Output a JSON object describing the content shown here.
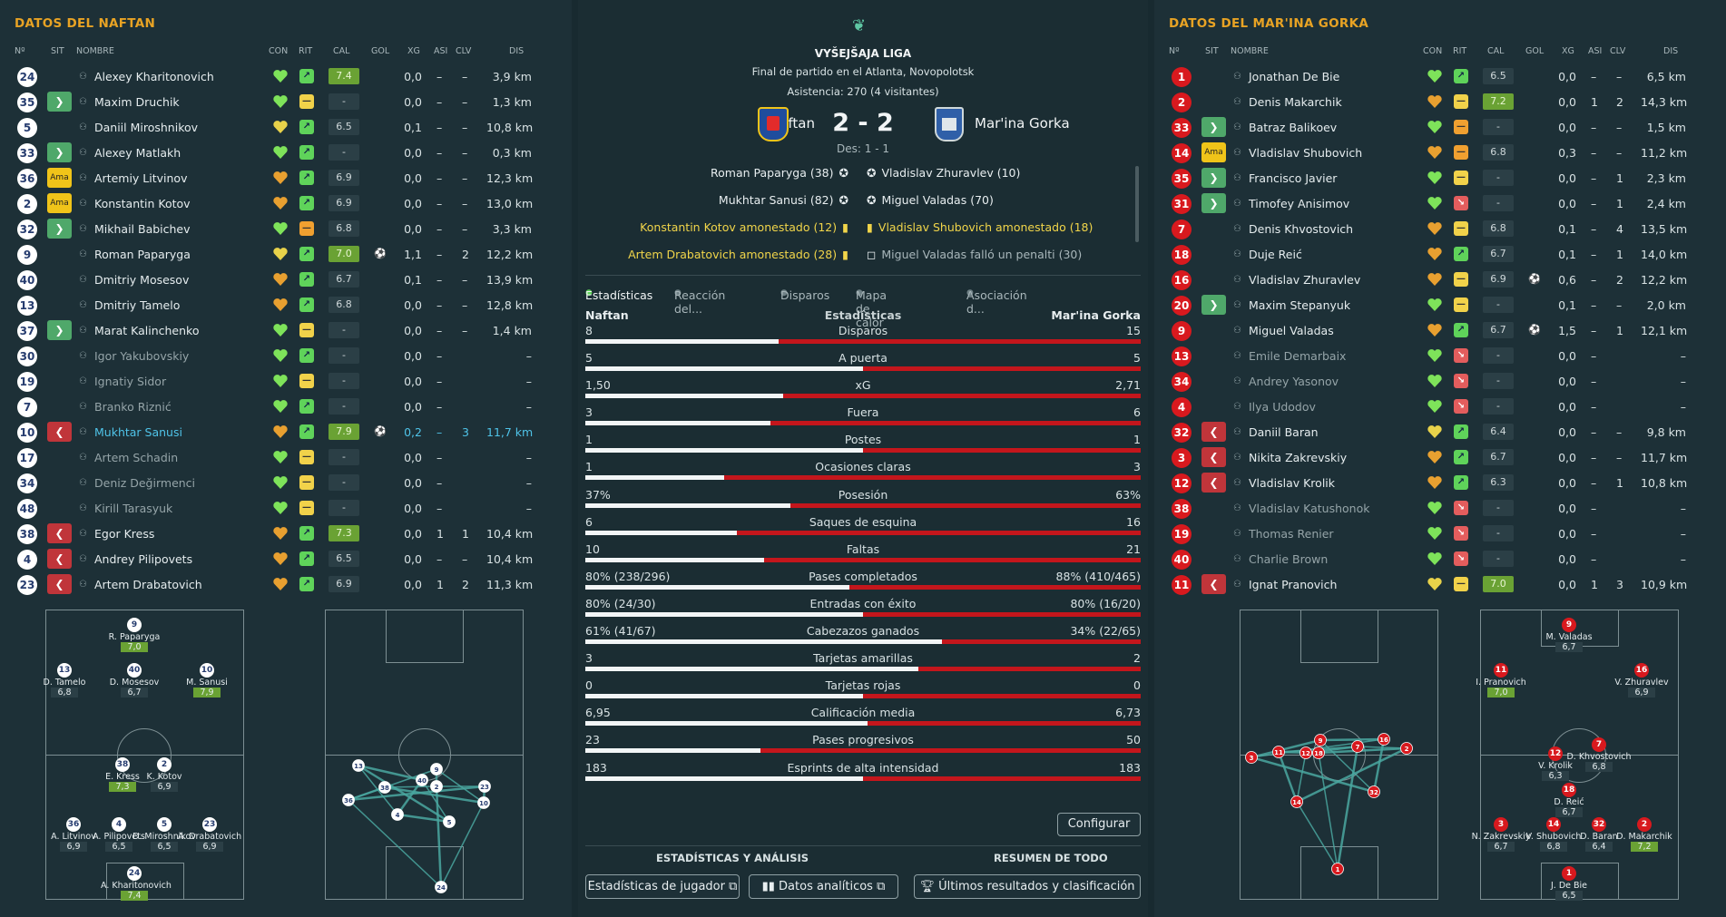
{
  "left": {
    "title": "DATOS DEL NAFTAN",
    "headers": {
      "num": "Nº",
      "sit": "SIT",
      "nombre": "NOMBRE",
      "con": "CON",
      "rit": "RIT",
      "cal": "CAL",
      "gol": "GOL",
      "xg": "XG",
      "asi": "ASI",
      "clv": "CLV",
      "dis": "DIS"
    },
    "players": [
      {
        "num": "24",
        "sit": "",
        "name": "Alexey Kharitonovich",
        "con": "#7ee35a",
        "rit": "up",
        "cal": "7.4",
        "calg": true,
        "gol": "",
        "xg": "0,0",
        "asi": "–",
        "clv": "–",
        "dis": "3,9 km"
      },
      {
        "num": "35",
        "sit": "in",
        "name": "Maxim Druchik",
        "con": "#7ee35a",
        "rit": "eq",
        "cal": "-",
        "calg": false,
        "gol": "",
        "xg": "0,0",
        "asi": "–",
        "clv": "–",
        "dis": "1,3 km"
      },
      {
        "num": "5",
        "sit": "",
        "name": "Daniil Miroshnikov",
        "con": "#e8d24a",
        "rit": "up",
        "cal": "6.5",
        "calg": false,
        "gol": "",
        "xg": "0,1",
        "asi": "–",
        "clv": "–",
        "dis": "10,8 km"
      },
      {
        "num": "33",
        "sit": "in",
        "name": "Alexey Matlakh",
        "con": "#7ee35a",
        "rit": "up",
        "cal": "-",
        "calg": false,
        "gol": "",
        "xg": "0,0",
        "asi": "–",
        "clv": "–",
        "dis": "0,3 km"
      },
      {
        "num": "36",
        "sit": "amber",
        "name": "Artemiy Litvinov",
        "con": "#e8a030",
        "rit": "up",
        "cal": "6.9",
        "calg": false,
        "gol": "",
        "xg": "0,0",
        "asi": "–",
        "clv": "–",
        "dis": "12,3 km"
      },
      {
        "num": "2",
        "sit": "amber",
        "name": "Konstantin Kotov",
        "con": "#e8a030",
        "rit": "up",
        "cal": "6.9",
        "calg": false,
        "gol": "",
        "xg": "0,0",
        "asi": "–",
        "clv": "–",
        "dis": "13,0 km"
      },
      {
        "num": "32",
        "sit": "in",
        "name": "Mikhail Babichev",
        "con": "#7ee35a",
        "rit": "or",
        "cal": "6.8",
        "calg": false,
        "gol": "",
        "xg": "0,0",
        "asi": "–",
        "clv": "–",
        "dis": "3,3 km"
      },
      {
        "num": "9",
        "sit": "",
        "name": "Roman Paparyga",
        "con": "#e8d24a",
        "rit": "up",
        "cal": "7.0",
        "calg": true,
        "gol": "⚽",
        "xg": "1,1",
        "asi": "–",
        "clv": "2",
        "dis": "12,2 km"
      },
      {
        "num": "40",
        "sit": "",
        "name": "Dmitriy Mosesov",
        "con": "#e8a030",
        "rit": "up",
        "cal": "6.7",
        "calg": false,
        "gol": "",
        "xg": "0,1",
        "asi": "–",
        "clv": "–",
        "dis": "13,9 km"
      },
      {
        "num": "13",
        "sit": "",
        "name": "Dmitriy Tamelo",
        "con": "#e8a030",
        "rit": "up",
        "cal": "6.8",
        "calg": false,
        "gol": "",
        "xg": "0,0",
        "asi": "–",
        "clv": "–",
        "dis": "12,8 km"
      },
      {
        "num": "37",
        "sit": "in",
        "name": "Marat Kalinchenko",
        "con": "#7ee35a",
        "rit": "eq",
        "cal": "-",
        "calg": false,
        "gol": "",
        "xg": "0,0",
        "asi": "–",
        "clv": "–",
        "dis": "1,4 km"
      },
      {
        "num": "30",
        "sit": "",
        "name": "Igor Yakubovskiy",
        "con": "#7ee35a",
        "rit": "up",
        "cal": "-",
        "calg": false,
        "gol": "",
        "xg": "0,0",
        "asi": "–",
        "clv": "",
        "dis": "–",
        "dim": true
      },
      {
        "num": "19",
        "sit": "",
        "name": "Ignatiy Sidor",
        "con": "#7ee35a",
        "rit": "eq",
        "cal": "-",
        "calg": false,
        "gol": "",
        "xg": "0,0",
        "asi": "–",
        "clv": "",
        "dis": "–",
        "dim": true
      },
      {
        "num": "7",
        "sit": "",
        "name": "Branko Riznić",
        "con": "#7ee35a",
        "rit": "up",
        "cal": "-",
        "calg": false,
        "gol": "",
        "xg": "0,0",
        "asi": "–",
        "clv": "",
        "dis": "–",
        "dim": true
      },
      {
        "num": "10",
        "sit": "out",
        "name": "Mukhtar Sanusi",
        "con": "#e8a030",
        "rit": "up",
        "cal": "7.9",
        "calg": true,
        "gol": "⚽",
        "xg": "0,2",
        "asi": "–",
        "clv": "3",
        "dis": "11,7 km",
        "hl": true
      },
      {
        "num": "17",
        "sit": "",
        "name": "Artem Schadin",
        "con": "#7ee35a",
        "rit": "eq",
        "cal": "-",
        "calg": false,
        "gol": "",
        "xg": "0,0",
        "asi": "–",
        "clv": "",
        "dis": "–",
        "dim": true
      },
      {
        "num": "34",
        "sit": "",
        "name": "Deniz Değirmenci",
        "con": "#7ee35a",
        "rit": "eq",
        "cal": "-",
        "calg": false,
        "gol": "",
        "xg": "0,0",
        "asi": "–",
        "clv": "",
        "dis": "–",
        "dim": true
      },
      {
        "num": "48",
        "sit": "",
        "name": "Kirill Tarasyuk",
        "con": "#7ee35a",
        "rit": "eq",
        "cal": "-",
        "calg": false,
        "gol": "",
        "xg": "0,0",
        "asi": "–",
        "clv": "",
        "dis": "–",
        "dim": true
      },
      {
        "num": "38",
        "sit": "out",
        "name": "Egor Kress",
        "con": "#e8a030",
        "rit": "up",
        "cal": "7.3",
        "calg": true,
        "gol": "",
        "xg": "0,0",
        "asi": "1",
        "clv": "1",
        "dis": "10,4 km"
      },
      {
        "num": "4",
        "sit": "out",
        "name": "Andrey Pilipovets",
        "con": "#e8a030",
        "rit": "up",
        "cal": "6.5",
        "calg": false,
        "gol": "",
        "xg": "0,0",
        "asi": "–",
        "clv": "–",
        "dis": "10,4 km"
      },
      {
        "num": "23",
        "sit": "out",
        "name": "Artem Drabatovich",
        "con": "#e8a030",
        "rit": "up",
        "cal": "6.9",
        "calg": false,
        "gol": "",
        "xg": "0,0",
        "asi": "1",
        "clv": "2",
        "dis": "11,3 km"
      }
    ],
    "formation": [
      {
        "n": "9",
        "name": "R. Paparyga",
        "r": "7,0",
        "g": true
      },
      {
        "n": "13",
        "name": "D. Tamelo",
        "r": "6,8",
        "g": false
      },
      {
        "n": "40",
        "name": "D. Mosesov",
        "r": "6,7",
        "g": false
      },
      {
        "n": "10",
        "name": "M. Sanusi",
        "r": "7,9",
        "g": true
      },
      {
        "n": "38",
        "name": "E. Kress",
        "r": "7,3",
        "g": true
      },
      {
        "n": "2",
        "name": "K. Kotov",
        "r": "6,9",
        "g": false
      },
      {
        "n": "36",
        "name": "A. Litvinov",
        "r": "6,9",
        "g": false
      },
      {
        "n": "4",
        "name": "A. Pilipovets",
        "r": "6,5",
        "g": false
      },
      {
        "n": "5",
        "name": "D. Miroshnikov",
        "r": "6,5",
        "g": false
      },
      {
        "n": "23",
        "name": "A. Drabatovich",
        "r": "6,9",
        "g": false
      },
      {
        "n": "24",
        "name": "A. Kharitonovich",
        "r": "7,4",
        "g": true
      }
    ],
    "passmap": [
      "13",
      "38",
      "36",
      "40",
      "9",
      "2",
      "4",
      "23",
      "10",
      "5",
      "24"
    ]
  },
  "right": {
    "title": "DATOS DEL MAR'INA GORKA",
    "headers": {
      "num": "Nº",
      "sit": "SIT",
      "nombre": "NOMBRE",
      "con": "CON",
      "rit": "RIT",
      "cal": "CAL",
      "gol": "GOL",
      "xg": "XG",
      "asi": "ASI",
      "clv": "CLV",
      "dis": "DIS"
    },
    "players": [
      {
        "num": "1",
        "sit": "",
        "name": "Jonathan De Bie",
        "con": "#7ee35a",
        "rit": "up",
        "cal": "6.5",
        "calg": false,
        "gol": "",
        "xg": "0,0",
        "asi": "–",
        "clv": "–",
        "dis": "6,5 km"
      },
      {
        "num": "2",
        "sit": "",
        "name": "Denis Makarchik",
        "con": "#e8a030",
        "rit": "eq",
        "cal": "7.2",
        "calg": true,
        "gol": "",
        "xg": "0,0",
        "asi": "1",
        "clv": "2",
        "dis": "14,3 km"
      },
      {
        "num": "33",
        "sit": "in",
        "name": "Batraz Balikoev",
        "con": "#7ee35a",
        "rit": "or",
        "cal": "-",
        "calg": false,
        "gol": "",
        "xg": "0,0",
        "asi": "–",
        "clv": "–",
        "dis": "1,5 km"
      },
      {
        "num": "14",
        "sit": "amber",
        "name": "Vladislav Shubovich",
        "con": "#e8a030",
        "rit": "or",
        "cal": "6.8",
        "calg": false,
        "gol": "",
        "xg": "0,3",
        "asi": "–",
        "clv": "–",
        "dis": "11,2 km"
      },
      {
        "num": "35",
        "sit": "in",
        "name": "Francisco Javier",
        "con": "#7ee35a",
        "rit": "eq",
        "cal": "-",
        "calg": false,
        "gol": "",
        "xg": "0,0",
        "asi": "–",
        "clv": "1",
        "dis": "2,3 km"
      },
      {
        "num": "31",
        "sit": "in",
        "name": "Timofey Anisimov",
        "con": "#7ee35a",
        "rit": "dn",
        "cal": "-",
        "calg": false,
        "gol": "",
        "xg": "0,0",
        "asi": "–",
        "clv": "1",
        "dis": "2,4 km"
      },
      {
        "num": "7",
        "sit": "",
        "name": "Denis Khvostovich",
        "con": "#e8a030",
        "rit": "eq",
        "cal": "6.8",
        "calg": false,
        "gol": "",
        "xg": "0,1",
        "asi": "–",
        "clv": "4",
        "dis": "13,5 km"
      },
      {
        "num": "18",
        "sit": "",
        "name": "Duje Reić",
        "con": "#e8a030",
        "rit": "up",
        "cal": "6.7",
        "calg": false,
        "gol": "",
        "xg": "0,1",
        "asi": "–",
        "clv": "1",
        "dis": "14,0 km"
      },
      {
        "num": "16",
        "sit": "",
        "name": "Vladislav Zhuravlev",
        "con": "#e8a030",
        "rit": "eq",
        "cal": "6.9",
        "calg": false,
        "gol": "⚽",
        "xg": "0,6",
        "asi": "–",
        "clv": "2",
        "dis": "12,2 km"
      },
      {
        "num": "20",
        "sit": "in",
        "name": "Maxim Stepanyuk",
        "con": "#7ee35a",
        "rit": "eq",
        "cal": "-",
        "calg": false,
        "gol": "",
        "xg": "0,1",
        "asi": "–",
        "clv": "–",
        "dis": "2,0 km"
      },
      {
        "num": "9",
        "sit": "",
        "name": "Miguel Valadas",
        "con": "#e8a030",
        "rit": "up",
        "cal": "6.7",
        "calg": false,
        "gol": "⚽",
        "xg": "1,5",
        "asi": "–",
        "clv": "1",
        "dis": "12,1 km"
      },
      {
        "num": "13",
        "sit": "",
        "name": "Emile Demarbaix",
        "con": "#7ee35a",
        "rit": "dn",
        "cal": "-",
        "calg": false,
        "gol": "",
        "xg": "0,0",
        "asi": "–",
        "clv": "",
        "dis": "–",
        "dim": true
      },
      {
        "num": "34",
        "sit": "",
        "name": "Andrey Yasonov",
        "con": "#7ee35a",
        "rit": "dn",
        "cal": "-",
        "calg": false,
        "gol": "",
        "xg": "0,0",
        "asi": "–",
        "clv": "",
        "dis": "–",
        "dim": true
      },
      {
        "num": "4",
        "sit": "",
        "name": "Ilya Udodov",
        "con": "#7ee35a",
        "rit": "dn",
        "cal": "-",
        "calg": false,
        "gol": "",
        "xg": "0,0",
        "asi": "–",
        "clv": "",
        "dis": "–",
        "dim": true
      },
      {
        "num": "32",
        "sit": "out",
        "name": "Daniil Baran",
        "con": "#e8d24a",
        "rit": "up",
        "cal": "6.4",
        "calg": false,
        "gol": "",
        "xg": "0,0",
        "asi": "–",
        "clv": "–",
        "dis": "9,8 km"
      },
      {
        "num": "3",
        "sit": "out",
        "name": "Nikita Zakrevskiy",
        "con": "#e8a030",
        "rit": "up",
        "cal": "6.7",
        "calg": false,
        "gol": "",
        "xg": "0,0",
        "asi": "–",
        "clv": "–",
        "dis": "11,7 km"
      },
      {
        "num": "12",
        "sit": "out",
        "name": "Vladislav Krolik",
        "con": "#e8a030",
        "rit": "up",
        "cal": "6.3",
        "calg": false,
        "gol": "",
        "xg": "0,0",
        "asi": "–",
        "clv": "1",
        "dis": "10,8 km"
      },
      {
        "num": "38",
        "sit": "",
        "name": "Vladislav Katushonok",
        "con": "#7ee35a",
        "rit": "dn",
        "cal": "-",
        "calg": false,
        "gol": "",
        "xg": "0,0",
        "asi": "–",
        "clv": "",
        "dis": "–",
        "dim": true
      },
      {
        "num": "19",
        "sit": "",
        "name": "Thomas Renier",
        "con": "#7ee35a",
        "rit": "dn",
        "cal": "-",
        "calg": false,
        "gol": "",
        "xg": "0,0",
        "asi": "–",
        "clv": "",
        "dis": "–",
        "dim": true
      },
      {
        "num": "40",
        "sit": "",
        "name": "Charlie Brown",
        "con": "#7ee35a",
        "rit": "dn",
        "cal": "-",
        "calg": false,
        "gol": "",
        "xg": "0,0",
        "asi": "–",
        "clv": "",
        "dis": "–",
        "dim": true
      },
      {
        "num": "11",
        "sit": "out",
        "name": "Ignat Pranovich",
        "con": "#e8d24a",
        "rit": "eq",
        "cal": "7.0",
        "calg": true,
        "gol": "",
        "xg": "0,0",
        "asi": "1",
        "clv": "3",
        "dis": "10,9 km"
      }
    ],
    "formation": [
      {
        "n": "9",
        "name": "M. Valadas",
        "r": "6,7",
        "g": false
      },
      {
        "n": "11",
        "name": "I. Pranovich",
        "r": "7,0",
        "g": true
      },
      {
        "n": "16",
        "name": "V. Zhuravlev",
        "r": "6,9",
        "g": false
      },
      {
        "n": "12",
        "name": "V. Krolik",
        "r": "6,3",
        "g": false
      },
      {
        "n": "7",
        "name": "D. Khvostovich",
        "r": "6,8",
        "g": false
      },
      {
        "n": "18",
        "name": "D. Reić",
        "r": "6,7",
        "g": false
      },
      {
        "n": "3",
        "name": "N. Zakrevskiy",
        "r": "6,7",
        "g": false
      },
      {
        "n": "14",
        "name": "V. Shubovich",
        "r": "6,8",
        "g": false
      },
      {
        "n": "32",
        "name": "D. Baran",
        "r": "6,4",
        "g": false
      },
      {
        "n": "2",
        "name": "D. Makarchik",
        "r": "7,2",
        "g": true
      },
      {
        "n": "1",
        "name": "J. De Bie",
        "r": "6,5",
        "g": false
      }
    ],
    "passmap": [
      "3",
      "11",
      "18",
      "9",
      "12",
      "7",
      "16",
      "2",
      "14",
      "32",
      "1"
    ]
  },
  "center": {
    "league": "VYŠEJŠAJA LIGA",
    "subtitle": "Final de partido en el Atlanta, Novopolotsk",
    "attendance": "Asistencia: 270 (4 visitantes)",
    "home": "Naftan",
    "away": "Mar'ina Gorka",
    "score": "2 - 2",
    "halftime": "Des: 1 - 1",
    "home_events": [
      {
        "t": "Roman Paparyga (38)",
        "k": "goal"
      },
      {
        "t": "Mukhtar Sanusi (82)",
        "k": "goal"
      },
      {
        "t": "Konstantin Kotov amonestado (12)",
        "k": "yellow"
      },
      {
        "t": "Artem Drabatovich amonestado (28)",
        "k": "yellow"
      }
    ],
    "away_events": [
      {
        "t": "Vladislav Zhuravlev (10)",
        "k": "goal"
      },
      {
        "t": "Miguel Valadas (70)",
        "k": "goal"
      },
      {
        "t": "Vladislav Shubovich amonestado (18)",
        "k": "yellow"
      },
      {
        "t": "Miguel Valadas falló un penalti (30)",
        "k": "miss"
      }
    ],
    "tabs": [
      "Estadísticas",
      "Reacción del...",
      "Disparos",
      "Mapa de calor",
      "Asociación d..."
    ],
    "stats_header": {
      "left": "Naftan",
      "mid": "Estadísticas",
      "right": "Mar'ina Gorka"
    },
    "footer": {
      "left_title": "ESTADÍSTICAS Y ANÁLISIS",
      "right_title": "RESUMEN DE TODO",
      "btn_jugador": "Estadísticas de jugador",
      "btn_datos": "Datos analíticos",
      "btn_result": "Últimos resultados y clasificación",
      "configure": "Configurar"
    }
  },
  "chart_data": {
    "type": "bar",
    "categories": [
      "Disparos",
      "A puerta",
      "xG",
      "Fuera",
      "Postes",
      "Ocasiones claras",
      "Posesión",
      "Saques de esquina",
      "Faltas",
      "Pases completados",
      "Entradas con éxito",
      "Cabezazos ganados",
      "Tarjetas amarillas",
      "Tarjetas rojas",
      "Calificación media",
      "Pases progresivos",
      "Esprints de alta intensidad"
    ],
    "series": [
      {
        "name": "Naftan",
        "labels": [
          "8",
          "5",
          "1,50",
          "3",
          "1",
          "1",
          "37%",
          "6",
          "10",
          "80% (238/296)",
          "80% (24/30)",
          "61% (41/67)",
          "3",
          "0",
          "6,95",
          "23",
          "183"
        ],
        "values": [
          8,
          5,
          1.5,
          3,
          1,
          1,
          37,
          6,
          10,
          80,
          80,
          61,
          3,
          0,
          6.95,
          23,
          183
        ]
      },
      {
        "name": "Mar'ina Gorka",
        "labels": [
          "15",
          "5",
          "2,71",
          "6",
          "1",
          "3",
          "63%",
          "16",
          "21",
          "88% (410/465)",
          "80% (16/20)",
          "34% (22/65)",
          "2",
          "0",
          "6,73",
          "50",
          "183"
        ],
        "values": [
          15,
          5,
          2.71,
          6,
          1,
          3,
          63,
          16,
          21,
          88,
          80,
          34,
          2,
          0,
          6.73,
          50,
          183
        ]
      }
    ]
  }
}
